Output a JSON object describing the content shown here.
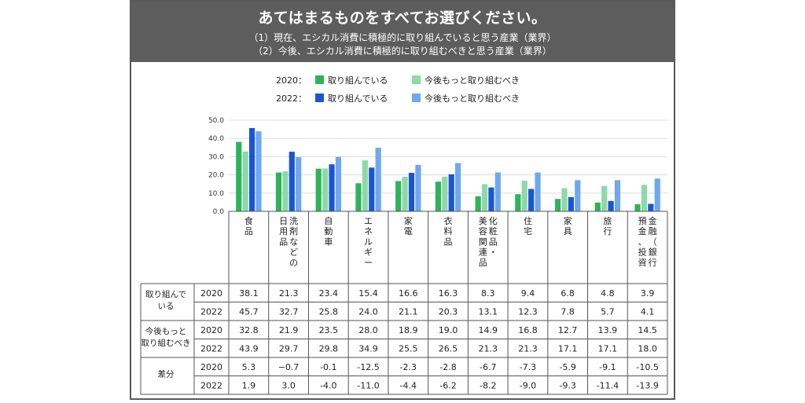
{
  "header": {
    "title": "あてはまるものをすべてお選びください。",
    "sub1": "（1）現在、エシカル消費に積極的に取り組んでいると思う産業（業界）",
    "sub2": "（2）今後、エシカル消費に積極的に取り組むべきと思う産業（業界）"
  },
  "legend": {
    "year2020": "2020：",
    "year2022": "2022：",
    "doing": "取り組んでいる",
    "should": "今後もっと取り組むべき"
  },
  "colors": {
    "doing_2020": "#2eb35a",
    "should_2020": "#8ed9a8",
    "doing_2022": "#1a55d6",
    "should_2022": "#6fa8ee"
  },
  "table": {
    "group_doing": [
      "取り組んで",
      "いる"
    ],
    "group_should": [
      "今後もっと",
      "取り組むべき"
    ],
    "group_diff": "差分",
    "years": [
      "2020",
      "2022"
    ]
  },
  "chart_data": {
    "type": "bar",
    "ylim": [
      0,
      50
    ],
    "yticks": [
      "50.0",
      "40.0",
      "30.0",
      "20.0",
      "10.0",
      "0.0"
    ],
    "grid": true,
    "legend_position": "top",
    "categories": [
      [
        "食",
        "品"
      ],
      [
        "日",
        "用",
        "品"
      ],
      [
        "自",
        "動",
        "車"
      ],
      [
        "エ",
        "ネ",
        "ル",
        "ギ",
        "ー"
      ],
      [
        "家",
        "電"
      ],
      [
        "衣",
        "料",
        "品"
      ],
      [
        "美",
        "容",
        "関",
        "連",
        "品"
      ],
      [
        "住",
        "宅"
      ],
      [
        "家",
        "具"
      ],
      [
        "旅",
        "行"
      ],
      [
        "預",
        "金",
        "、",
        "投",
        "資"
      ]
    ],
    "categories_col2": [
      [],
      [
        "洗",
        "剤",
        "な",
        "ど",
        "の"
      ],
      [],
      [],
      [],
      [],
      [
        "化",
        "粧",
        "品",
        "・"
      ],
      [],
      [],
      [],
      [
        "金",
        "融",
        "（",
        "銀",
        "行"
      ]
    ],
    "series": [
      {
        "name": "2020 取り組んでいる",
        "values": [
          38.1,
          21.3,
          23.4,
          15.4,
          16.6,
          16.3,
          8.3,
          9.4,
          6.8,
          4.8,
          3.9
        ]
      },
      {
        "name": "2020 今後もっと取り組むべき",
        "values": [
          32.8,
          21.9,
          23.5,
          28.0,
          18.9,
          19.0,
          14.9,
          16.8,
          12.7,
          13.9,
          14.5
        ]
      },
      {
        "name": "2022 取り組んでいる",
        "values": [
          45.7,
          32.7,
          25.8,
          24.0,
          21.1,
          20.3,
          13.1,
          12.3,
          7.8,
          5.7,
          4.1
        ]
      },
      {
        "name": "2022 今後もっと取り組むべき",
        "values": [
          43.9,
          29.7,
          29.8,
          34.9,
          25.5,
          26.5,
          21.3,
          21.3,
          17.1,
          17.1,
          18.0
        ]
      }
    ],
    "table_values": {
      "doing_2020": [
        "38.1",
        "21.3",
        "23.4",
        "15.4",
        "16.6",
        "16.3",
        "8.3",
        "9.4",
        "6.8",
        "4.8",
        "3.9"
      ],
      "doing_2022": [
        "45.7",
        "32.7",
        "25.8",
        "24.0",
        "21.1",
        "20.3",
        "13.1",
        "12.3",
        "7.8",
        "5.7",
        "4.1"
      ],
      "should_2020": [
        "32.8",
        "21.9",
        "23.5",
        "28.0",
        "18.9",
        "19.0",
        "14.9",
        "16.8",
        "12.7",
        "13.9",
        "14.5"
      ],
      "should_2022": [
        "43.9",
        "29.7",
        "29.8",
        "34.9",
        "25.5",
        "26.5",
        "21.3",
        "21.3",
        "17.1",
        "17.1",
        "18.0"
      ],
      "diff_2020": [
        "5.3",
        "−0.7",
        "-0.1",
        "-12.5",
        "-2.3",
        "-2.8",
        "-6.7",
        "-7.3",
        "-5.9",
        "-9.1",
        "-10.5"
      ],
      "diff_2022": [
        "1.9",
        "3.0",
        "-4.0",
        "-11.0",
        "-4.4",
        "-6.2",
        "-8.2",
        "-9.0",
        "-9.3",
        "-11.4",
        "-13.9"
      ]
    }
  }
}
